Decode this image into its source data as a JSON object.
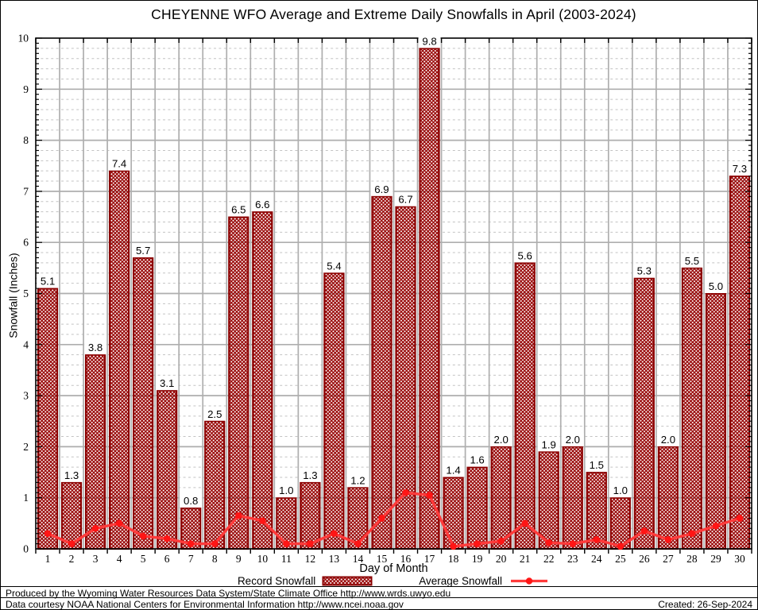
{
  "title": "CHEYENNE WFO Average and Extreme Daily Snowfalls in April (2003-2024)",
  "axes": {
    "ylabel": "Snowfall (Inches)",
    "xlabel": "Day of Month"
  },
  "legend": {
    "record_label": "Record Snowfall",
    "average_label": "Average Snowfall"
  },
  "footer": {
    "line1": "Produced by the Wyoming Water Resources Data System/State Climate Office http://www.wrds.uwyo.edu",
    "line2": "Data courtesy NOAA National Centers for Environmental Information http://www.ncei.noaa.gov",
    "created": "Created: 26-Sep-2024"
  },
  "colors": {
    "bar_border": "#8b0000",
    "bar_hatch": "#9a0a0a",
    "avg_line": "#ff3b3b",
    "avg_marker": "#ff1515",
    "grid_major": "#aeaeae",
    "grid_minor": "#c3c3c3",
    "axis": "#000000"
  },
  "chart_data": {
    "type": "bar",
    "title": "CHEYENNE WFO Average and Extreme Daily Snowfalls in April (2003-2024)",
    "xlabel": "Day of Month",
    "ylabel": "Snowfall (Inches)",
    "ylim": [
      0,
      10
    ],
    "ytick_step": 1,
    "y_minor_grid_step": 0.2,
    "grid": true,
    "legend_position": "bottom",
    "categories": [
      1,
      2,
      3,
      4,
      5,
      6,
      7,
      8,
      9,
      10,
      11,
      12,
      13,
      14,
      15,
      16,
      17,
      18,
      19,
      20,
      21,
      22,
      23,
      24,
      25,
      26,
      27,
      28,
      29,
      30
    ],
    "series": [
      {
        "name": "Record Snowfall",
        "type": "bar",
        "values": [
          5.1,
          1.3,
          3.8,
          7.4,
          5.7,
          3.1,
          0.8,
          2.5,
          6.5,
          6.6,
          1.0,
          1.3,
          5.4,
          1.2,
          6.9,
          6.7,
          9.8,
          1.4,
          1.6,
          2.0,
          5.6,
          1.9,
          2.0,
          1.5,
          1.0,
          5.3,
          2.0,
          5.5,
          5.0,
          7.3
        ]
      },
      {
        "name": "Average Snowfall",
        "type": "line",
        "values": [
          0.3,
          0.1,
          0.4,
          0.5,
          0.25,
          0.2,
          0.1,
          0.1,
          0.65,
          0.55,
          0.1,
          0.1,
          0.3,
          0.1,
          0.6,
          1.1,
          1.05,
          0.05,
          0.1,
          0.15,
          0.5,
          0.12,
          0.1,
          0.18,
          0.05,
          0.35,
          0.18,
          0.3,
          0.45,
          0.6
        ]
      }
    ]
  }
}
